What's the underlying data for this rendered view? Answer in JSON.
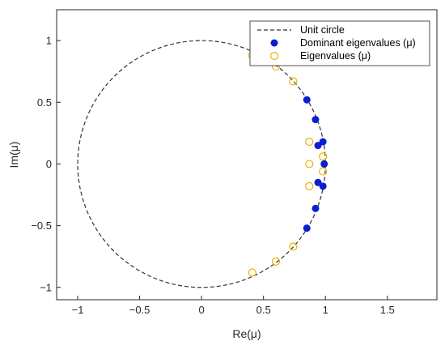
{
  "chart_data": {
    "type": "scatter",
    "xlabel": "Re(μ)",
    "ylabel": "Im(μ)",
    "xlim": [
      -1.17,
      1.9
    ],
    "ylim": [
      -1.1,
      1.25
    ],
    "xticks": [
      -1,
      -0.5,
      0,
      0.5,
      1,
      1.5
    ],
    "xtick_labels": [
      "−1",
      "−0.5",
      "0",
      "0.5",
      "1",
      "1.5"
    ],
    "yticks": [
      -1,
      -0.5,
      0,
      0.5,
      1
    ],
    "ytick_labels": [
      "−1",
      "−0.5",
      "0",
      "0.5",
      "1"
    ],
    "grid": false,
    "legend_position": "top-right",
    "series": [
      {
        "name": "Unit circle",
        "kind": "line",
        "style": "dashed",
        "color": "#333333",
        "equation": "|μ| = 1"
      },
      {
        "name": "Dominant eigenvalues (μ)",
        "kind": "scatter",
        "marker": "filled-circle",
        "color": "#0a1ed2",
        "points": [
          [
            0.85,
            0.52
          ],
          [
            0.85,
            -0.52
          ],
          [
            0.92,
            0.36
          ],
          [
            0.92,
            -0.36
          ],
          [
            0.98,
            0.18
          ],
          [
            0.98,
            -0.18
          ],
          [
            0.94,
            0.15
          ],
          [
            0.94,
            -0.15
          ],
          [
            0.99,
            0.0
          ]
        ]
      },
      {
        "name": "Eigenvalues (μ)",
        "kind": "scatter",
        "marker": "open-circle",
        "color": "#e8b400",
        "points": [
          [
            0.41,
            0.88
          ],
          [
            0.41,
            -0.88
          ],
          [
            0.6,
            0.79
          ],
          [
            0.6,
            -0.79
          ],
          [
            0.74,
            0.67
          ],
          [
            0.74,
            -0.67
          ],
          [
            0.87,
            0.18
          ],
          [
            0.87,
            -0.18
          ],
          [
            0.87,
            0.0
          ],
          [
            0.98,
            0.06
          ],
          [
            0.98,
            -0.06
          ]
        ]
      }
    ]
  }
}
